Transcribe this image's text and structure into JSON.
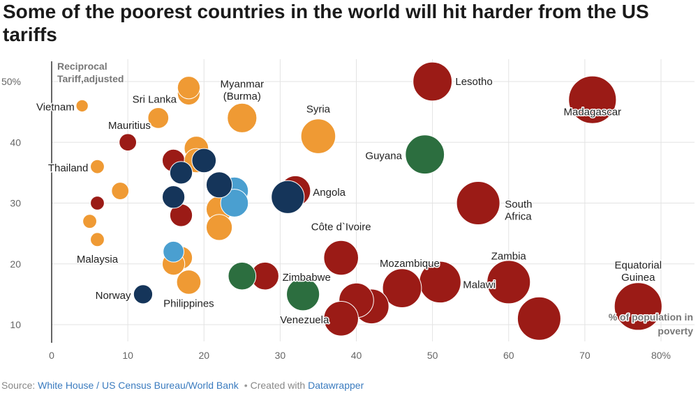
{
  "title": "Some of the poorest countries in the world will hit harder from the US tariffs",
  "footer": {
    "source_prefix": "Source: ",
    "source_link": "White House / US Census Bureau/World Bank",
    "separator": "•",
    "created_prefix": "Created with ",
    "created_link": "Datawrapper"
  },
  "chart_data": {
    "type": "scatter",
    "title": "Some of the poorest countries in the world will hit harder from the US tariffs",
    "ylabel": "Reciprocal Tariff,adjusted",
    "ylabel_lines": [
      "Reciprocal",
      "Tariff,adjusted"
    ],
    "xlabel": "% of population in poverty",
    "xlabel_lines": [
      "% of population in",
      "poverty"
    ],
    "xlim": [
      0,
      80
    ],
    "ylim": [
      7,
      53
    ],
    "x_ticks": [
      0,
      10,
      20,
      30,
      40,
      50,
      60,
      70,
      80
    ],
    "x_tick_labels": [
      "0",
      "10",
      "20",
      "30",
      "40",
      "50",
      "60",
      "70",
      "80%"
    ],
    "y_ticks": [
      10,
      20,
      30,
      40,
      50
    ],
    "y_tick_labels": [
      "10",
      "20",
      "30",
      "40",
      "50%"
    ],
    "grid": true,
    "colors": {
      "red": "#9b1b16",
      "orange": "#ef9a34",
      "green": "#2c6e3f",
      "navy": "#15355a",
      "lightblue": "#4a9fd0"
    },
    "points": [
      {
        "x": 71,
        "y": 47,
        "size": 5.5,
        "color": "red",
        "label": "Madagascar"
      },
      {
        "x": 50,
        "y": 50,
        "size": 4.5,
        "color": "red",
        "label": "Lesotho"
      },
      {
        "x": 77,
        "y": 13,
        "size": 5.5,
        "color": "red",
        "label": "Equatorial Guinea"
      },
      {
        "x": 64,
        "y": 11,
        "size": 5.0,
        "color": "red",
        "label": ""
      },
      {
        "x": 60,
        "y": 17,
        "size": 5.0,
        "color": "red",
        "label": "Zambia"
      },
      {
        "x": 56,
        "y": 30,
        "size": 5.0,
        "color": "red",
        "label": "South Africa"
      },
      {
        "x": 51,
        "y": 17,
        "size": 4.8,
        "color": "red",
        "label": "Malawi"
      },
      {
        "x": 46,
        "y": 16,
        "size": 4.5,
        "color": "red",
        "label": "Mozambique"
      },
      {
        "x": 42,
        "y": 13,
        "size": 4.0,
        "color": "red",
        "label": ""
      },
      {
        "x": 40,
        "y": 14,
        "size": 4.0,
        "color": "red",
        "label": ""
      },
      {
        "x": 38,
        "y": 11,
        "size": 4.0,
        "color": "red",
        "label": "Venezuela"
      },
      {
        "x": 38,
        "y": 21,
        "size": 4.0,
        "color": "red",
        "label": "Côte d`Ivoire"
      },
      {
        "x": 32,
        "y": 32,
        "size": 3.5,
        "color": "red",
        "label": "Angola"
      },
      {
        "x": 28,
        "y": 18,
        "size": 3.2,
        "color": "red",
        "label": "Zimbabwe"
      },
      {
        "x": 17,
        "y": 28,
        "size": 2.6,
        "color": "red",
        "label": ""
      },
      {
        "x": 16,
        "y": 37,
        "size": 2.6,
        "color": "red",
        "label": ""
      },
      {
        "x": 10,
        "y": 40,
        "size": 2.0,
        "color": "red",
        "label": ""
      },
      {
        "x": 6,
        "y": 30,
        "size": 1.6,
        "color": "red",
        "label": ""
      },
      {
        "x": 49,
        "y": 38,
        "size": 4.5,
        "color": "green",
        "label": "Guyana"
      },
      {
        "x": 33,
        "y": 15,
        "size": 3.8,
        "color": "green",
        "label": ""
      },
      {
        "x": 25,
        "y": 18,
        "size": 3.2,
        "color": "green",
        "label": ""
      },
      {
        "x": 35,
        "y": 41,
        "size": 4.0,
        "color": "orange",
        "label": "Syria"
      },
      {
        "x": 25,
        "y": 44,
        "size": 3.4,
        "color": "orange",
        "label": "Myanmar (Burma)"
      },
      {
        "x": 18,
        "y": 48,
        "size": 2.6,
        "color": "orange",
        "label": ""
      },
      {
        "x": 18,
        "y": 49,
        "size": 2.6,
        "color": "orange",
        "label": "Sri Lanka"
      },
      {
        "x": 14,
        "y": 44,
        "size": 2.4,
        "color": "orange",
        "label": "Mauritius"
      },
      {
        "x": 4,
        "y": 46,
        "size": 1.4,
        "color": "orange",
        "label": "Vietnam"
      },
      {
        "x": 6,
        "y": 36,
        "size": 1.6,
        "color": "orange",
        "label": "Thailand"
      },
      {
        "x": 9,
        "y": 32,
        "size": 2.0,
        "color": "orange",
        "label": ""
      },
      {
        "x": 5,
        "y": 27,
        "size": 1.6,
        "color": "orange",
        "label": ""
      },
      {
        "x": 6,
        "y": 24,
        "size": 1.6,
        "color": "orange",
        "label": "Malaysia"
      },
      {
        "x": 19,
        "y": 39,
        "size": 2.8,
        "color": "orange",
        "label": ""
      },
      {
        "x": 19,
        "y": 37,
        "size": 2.8,
        "color": "orange",
        "label": ""
      },
      {
        "x": 22,
        "y": 29,
        "size": 3.0,
        "color": "orange",
        "label": ""
      },
      {
        "x": 22,
        "y": 26,
        "size": 3.0,
        "color": "orange",
        "label": ""
      },
      {
        "x": 17,
        "y": 21,
        "size": 2.6,
        "color": "orange",
        "label": ""
      },
      {
        "x": 16,
        "y": 20,
        "size": 2.6,
        "color": "orange",
        "label": ""
      },
      {
        "x": 18,
        "y": 17,
        "size": 2.8,
        "color": "orange",
        "label": "Philippines"
      },
      {
        "x": 24,
        "y": 32,
        "size": 3.2,
        "color": "lightblue",
        "label": ""
      },
      {
        "x": 24,
        "y": 30,
        "size": 3.2,
        "color": "lightblue",
        "label": ""
      },
      {
        "x": 16,
        "y": 22,
        "size": 2.4,
        "color": "lightblue",
        "label": ""
      },
      {
        "x": 20,
        "y": 37,
        "size": 2.8,
        "color": "navy",
        "label": ""
      },
      {
        "x": 17,
        "y": 35,
        "size": 2.6,
        "color": "navy",
        "label": ""
      },
      {
        "x": 22,
        "y": 33,
        "size": 3.0,
        "color": "navy",
        "label": ""
      },
      {
        "x": 16,
        "y": 31,
        "size": 2.6,
        "color": "navy",
        "label": ""
      },
      {
        "x": 31,
        "y": 31,
        "size": 3.8,
        "color": "navy",
        "label": ""
      },
      {
        "x": 12,
        "y": 15,
        "size": 2.2,
        "color": "navy",
        "label": "Norway"
      }
    ],
    "labels": [
      {
        "text": "Madagascar",
        "x": 71,
        "y": 45.0,
        "anchor": "middle"
      },
      {
        "text": "Lesotho",
        "x": 53,
        "y": 50,
        "anchor": "start"
      },
      {
        "text": "Equatorial",
        "x": 77,
        "y": 19.8,
        "anchor": "middle"
      },
      {
        "text": "Guinea",
        "x": 77,
        "y": 17.8,
        "anchor": "middle"
      },
      {
        "text": "Zambia",
        "x": 60,
        "y": 21.3,
        "anchor": "middle"
      },
      {
        "text": "South",
        "x": 59.5,
        "y": 29.8,
        "anchor": "start"
      },
      {
        "text": "Africa",
        "x": 59.5,
        "y": 27.8,
        "anchor": "start"
      },
      {
        "text": "Malawi",
        "x": 54,
        "y": 16.6,
        "anchor": "start"
      },
      {
        "text": "Mozambique",
        "x": 47,
        "y": 20.1,
        "anchor": "middle"
      },
      {
        "text": "Venezuela",
        "x": 33.2,
        "y": 10.8,
        "anchor": "middle"
      },
      {
        "text": "Côte d`Ivoire",
        "x": 38,
        "y": 26.1,
        "anchor": "middle"
      },
      {
        "text": "Angola",
        "x": 34.3,
        "y": 31.8,
        "anchor": "start"
      },
      {
        "text": "Zimbabwe",
        "x": 30.3,
        "y": 17.8,
        "anchor": "start"
      },
      {
        "text": "Guyana",
        "x": 46,
        "y": 37.8,
        "anchor": "end"
      },
      {
        "text": "Syria",
        "x": 35,
        "y": 45.5,
        "anchor": "middle"
      },
      {
        "text": "Myanmar",
        "x": 25,
        "y": 49.6,
        "anchor": "middle"
      },
      {
        "text": "(Burma)",
        "x": 25,
        "y": 47.6,
        "anchor": "middle"
      },
      {
        "text": "Sri Lanka",
        "x": 16.4,
        "y": 47.1,
        "anchor": "end"
      },
      {
        "text": "Mauritius",
        "x": 13,
        "y": 42.8,
        "anchor": "end"
      },
      {
        "text": "Vietnam",
        "x": 3.0,
        "y": 45.8,
        "anchor": "end"
      },
      {
        "text": "Thailand",
        "x": 4.8,
        "y": 35.8,
        "anchor": "end"
      },
      {
        "text": "Malaysia",
        "x": 6,
        "y": 20.8,
        "anchor": "middle"
      },
      {
        "text": "Norway",
        "x": 10.4,
        "y": 14.8,
        "anchor": "end"
      },
      {
        "text": "Philippines",
        "x": 18,
        "y": 13.5,
        "anchor": "middle"
      }
    ]
  }
}
